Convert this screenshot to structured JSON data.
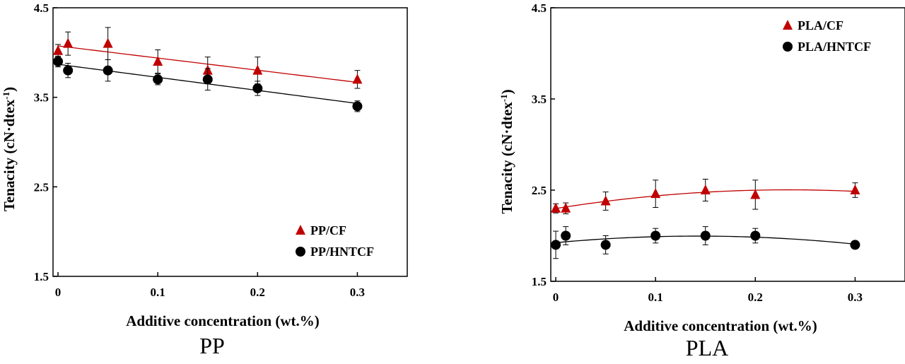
{
  "chart_data": [
    {
      "type": "scatter",
      "caption": "PP",
      "xlabel": "Additive concentration (wt.%)",
      "ylabel": "Tenacity (cN·dtex",
      "ylabel_sup": "-1",
      "ylabel_close": ")",
      "xlim": [
        -0.005,
        0.35
      ],
      "ylim": [
        1.5,
        4.5
      ],
      "xticks": [
        "0",
        "0.1",
        "0.2",
        "0.3"
      ],
      "xtick_values": [
        0,
        0.1,
        0.2,
        0.3
      ],
      "yticks": [
        "1.5",
        "2.5",
        "3.5",
        "4.5"
      ],
      "ytick_values": [
        1.5,
        2.5,
        3.5,
        4.5
      ],
      "legend_position": "bottom-right",
      "series": [
        {
          "name": "PP/CF",
          "marker": "triangle",
          "color": "#c00000",
          "x": [
            0,
            0.01,
            0.05,
            0.1,
            0.15,
            0.2,
            0.3
          ],
          "y": [
            4.02,
            4.1,
            4.1,
            3.9,
            3.8,
            3.8,
            3.7
          ],
          "err": [
            0.07,
            0.13,
            0.18,
            0.13,
            0.15,
            0.15,
            0.1
          ],
          "fit": "linear"
        },
        {
          "name": "PP/HNTCF",
          "marker": "circle",
          "color": "#000000",
          "x": [
            0,
            0.01,
            0.05,
            0.1,
            0.15,
            0.2,
            0.3
          ],
          "y": [
            3.9,
            3.8,
            3.8,
            3.7,
            3.7,
            3.6,
            3.4
          ],
          "err": [
            0.06,
            0.08,
            0.12,
            0.06,
            0.12,
            0.08,
            0.06
          ],
          "fit": "linear"
        }
      ]
    },
    {
      "type": "scatter",
      "caption": "PLA",
      "xlabel": "Additive concentration (wt.%)",
      "ylabel": "Tenacity (cN·dtex",
      "ylabel_sup": "-1",
      "ylabel_close": ")",
      "xlim": [
        -0.005,
        0.35
      ],
      "ylim": [
        1.5,
        4.5
      ],
      "xticks": [
        "0",
        "0.1",
        "0.2",
        "0.3"
      ],
      "xtick_values": [
        0,
        0.1,
        0.2,
        0.3
      ],
      "yticks": [
        "1.5",
        "2.5",
        "3.5",
        "4.5"
      ],
      "ytick_values": [
        1.5,
        2.5,
        3.5,
        4.5
      ],
      "legend_position": "top-right",
      "series": [
        {
          "name": "PLA/CF",
          "marker": "triangle",
          "color": "#c00000",
          "x": [
            0,
            0.01,
            0.05,
            0.1,
            0.15,
            0.2,
            0.3
          ],
          "y": [
            2.3,
            2.3,
            2.38,
            2.46,
            2.5,
            2.45,
            2.5
          ],
          "err": [
            0.05,
            0.06,
            0.1,
            0.15,
            0.12,
            0.16,
            0.08
          ],
          "fit": "quadratic"
        },
        {
          "name": "PLA/HNTCF",
          "marker": "circle",
          "color": "#000000",
          "x": [
            0,
            0.01,
            0.05,
            0.1,
            0.15,
            0.2,
            0.3
          ],
          "y": [
            1.9,
            2.0,
            1.9,
            2.0,
            2.0,
            2.0,
            1.9
          ],
          "err": [
            0.15,
            0.1,
            0.1,
            0.08,
            0.1,
            0.08,
            0.04
          ],
          "fit": "quadratic"
        }
      ]
    }
  ]
}
